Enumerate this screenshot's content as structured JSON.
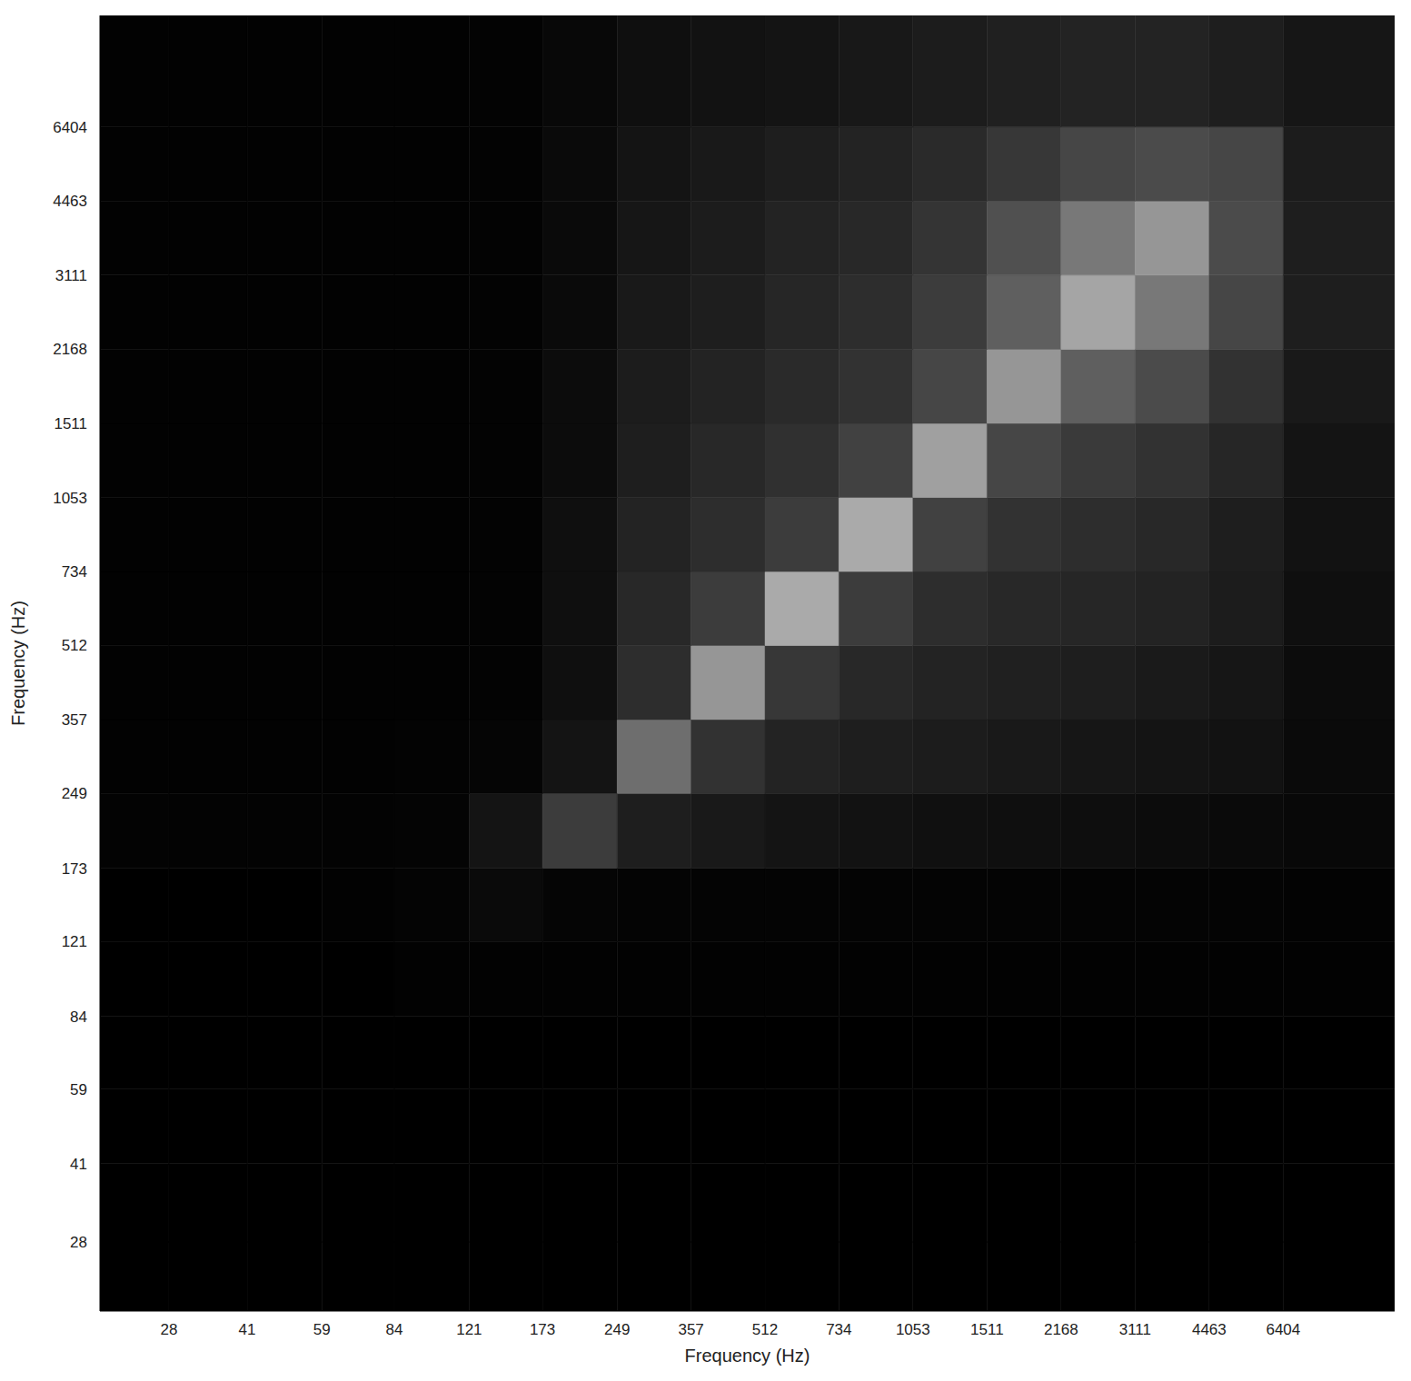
{
  "chart_data": {
    "type": "heatmap",
    "x_label": "Frequency (Hz)",
    "y_label": "Frequency (Hz)",
    "log": true,
    "grid": false,
    "xlim": [
      20,
      11025
    ],
    "ylim": [
      20,
      11025
    ],
    "xticks": [
      28,
      41,
      59,
      84,
      121,
      173,
      249,
      357,
      512,
      734,
      1053,
      1511,
      2168,
      3111,
      4463,
      6404
    ],
    "yticks": [
      28,
      41,
      59,
      84,
      121,
      173,
      249,
      357,
      512,
      734,
      1053,
      1511,
      2168,
      3111,
      4463,
      6404
    ],
    "x_bins": [
      20,
      28,
      41,
      59,
      84,
      121,
      173,
      249,
      357,
      512,
      734,
      1053,
      1511,
      2168,
      3111,
      4463,
      6404,
      11025
    ],
    "y_bins": [
      20,
      28,
      41,
      59,
      84,
      121,
      173,
      249,
      357,
      512,
      734,
      1053,
      1511,
      2168,
      3111,
      4463,
      6404,
      11025
    ],
    "zlim": [
      0,
      255
    ],
    "cells": [
      [
        0,
        0,
        0,
        0,
        0,
        0,
        0,
        0,
        0,
        0,
        0,
        0,
        0,
        0,
        0,
        0,
        0
      ],
      [
        0,
        0,
        0,
        0,
        0,
        0,
        0,
        0,
        0,
        0,
        0,
        0,
        0,
        0,
        0,
        0,
        0
      ],
      [
        0,
        0,
        0,
        0,
        0,
        0,
        0,
        0,
        0,
        0,
        0,
        0,
        0,
        0,
        0,
        0,
        0
      ],
      [
        0,
        0,
        0,
        0,
        0,
        0,
        0,
        0,
        0,
        0,
        0,
        0,
        0,
        0,
        0,
        0,
        0
      ],
      [
        0,
        0,
        0,
        0,
        2,
        2,
        2,
        2,
        2,
        2,
        2,
        2,
        2,
        2,
        2,
        2,
        2
      ],
      [
        0,
        0,
        0,
        2,
        4,
        10,
        5,
        4,
        4,
        4,
        4,
        4,
        4,
        4,
        4,
        4,
        3
      ],
      [
        3,
        3,
        3,
        3,
        4,
        20,
        60,
        30,
        25,
        20,
        18,
        16,
        15,
        14,
        12,
        10,
        8
      ],
      [
        2,
        2,
        2,
        2,
        3,
        5,
        20,
        110,
        50,
        35,
        30,
        28,
        25,
        22,
        20,
        18,
        10
      ],
      [
        2,
        2,
        2,
        2,
        2,
        3,
        15,
        45,
        150,
        55,
        40,
        35,
        32,
        30,
        26,
        22,
        12
      ],
      [
        2,
        2,
        2,
        2,
        2,
        3,
        15,
        40,
        60,
        170,
        60,
        45,
        40,
        38,
        35,
        28,
        15
      ],
      [
        2,
        2,
        2,
        2,
        2,
        3,
        15,
        35,
        45,
        60,
        170,
        65,
        50,
        45,
        40,
        30,
        18
      ],
      [
        2,
        2,
        2,
        2,
        2,
        3,
        12,
        30,
        40,
        48,
        65,
        160,
        70,
        58,
        50,
        38,
        20
      ],
      [
        2,
        2,
        2,
        2,
        2,
        3,
        12,
        28,
        35,
        42,
        50,
        70,
        150,
        95,
        75,
        50,
        25
      ],
      [
        2,
        2,
        2,
        2,
        2,
        3,
        10,
        25,
        30,
        38,
        45,
        60,
        95,
        165,
        120,
        70,
        30
      ],
      [
        2,
        2,
        2,
        2,
        2,
        3,
        10,
        22,
        28,
        35,
        40,
        52,
        80,
        120,
        150,
        75,
        30
      ],
      [
        2,
        2,
        2,
        2,
        2,
        3,
        10,
        20,
        25,
        30,
        35,
        42,
        55,
        70,
        75,
        70,
        28
      ],
      [
        2,
        2,
        2,
        2,
        2,
        3,
        8,
        15,
        18,
        20,
        24,
        28,
        32,
        35,
        35,
        30,
        22
      ]
    ]
  }
}
